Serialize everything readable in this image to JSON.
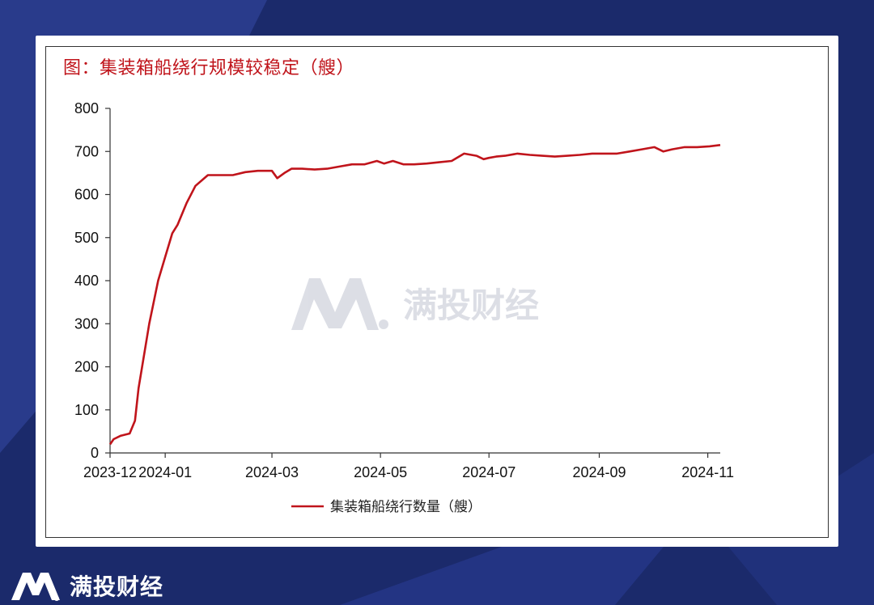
{
  "title": "图：集装箱船绕行规模较稳定（艘）",
  "watermark_text": "满投财经",
  "footer_brand": "满投财经",
  "colors": {
    "background": "#1b2a6b",
    "series": "#c0141b",
    "title": "#c0141b"
  },
  "chart_data": {
    "type": "line",
    "title": "图：集装箱船绕行规模较稳定（艘）",
    "xlabel": "",
    "ylabel": "",
    "ylim": [
      0,
      800
    ],
    "yticks": [
      0,
      100,
      200,
      300,
      400,
      500,
      600,
      700,
      800
    ],
    "x_tick_labels": [
      "2023-12",
      "2024-01",
      "2024-03",
      "2024-05",
      "2024-07",
      "2024-09",
      "2024-11"
    ],
    "x_tick_dates": [
      "2023-12-01",
      "2024-01-01",
      "2024-03-01",
      "2024-05-01",
      "2024-07-01",
      "2024-09-01",
      "2024-11-01"
    ],
    "xlim": [
      "2023-12-01",
      "2024-11-08"
    ],
    "legend_position": "bottom-center",
    "grid": false,
    "series": [
      {
        "name": "集装箱船绕行数量（艘）",
        "x": [
          "2023-12-01",
          "2023-12-03",
          "2023-12-07",
          "2023-12-12",
          "2023-12-15",
          "2023-12-17",
          "2023-12-19",
          "2023-12-21",
          "2023-12-23",
          "2023-12-25",
          "2023-12-28",
          "2024-01-01",
          "2024-01-05",
          "2024-01-08",
          "2024-01-13",
          "2024-01-18",
          "2024-01-25",
          "2024-02-01",
          "2024-02-08",
          "2024-02-15",
          "2024-02-22",
          "2024-03-01",
          "2024-03-04",
          "2024-03-08",
          "2024-03-12",
          "2024-03-18",
          "2024-03-25",
          "2024-04-01",
          "2024-04-08",
          "2024-04-15",
          "2024-04-22",
          "2024-04-29",
          "2024-05-03",
          "2024-05-08",
          "2024-05-14",
          "2024-05-20",
          "2024-05-27",
          "2024-06-03",
          "2024-06-10",
          "2024-06-17",
          "2024-06-24",
          "2024-06-28",
          "2024-07-01",
          "2024-07-05",
          "2024-07-10",
          "2024-07-17",
          "2024-07-24",
          "2024-07-31",
          "2024-08-07",
          "2024-08-14",
          "2024-08-21",
          "2024-08-28",
          "2024-09-04",
          "2024-09-11",
          "2024-09-18",
          "2024-09-25",
          "2024-10-02",
          "2024-10-07",
          "2024-10-12",
          "2024-10-19",
          "2024-10-26",
          "2024-11-02",
          "2024-11-08"
        ],
        "values": [
          20,
          32,
          40,
          45,
          75,
          150,
          200,
          250,
          300,
          340,
          400,
          455,
          510,
          530,
          580,
          620,
          645,
          645,
          645,
          652,
          655,
          655,
          638,
          650,
          660,
          660,
          658,
          660,
          665,
          670,
          670,
          678,
          672,
          678,
          670,
          670,
          672,
          675,
          678,
          695,
          690,
          682,
          685,
          688,
          690,
          695,
          692,
          690,
          688,
          690,
          692,
          695,
          695,
          695,
          700,
          705,
          710,
          700,
          705,
          710,
          710,
          712,
          715
        ]
      }
    ]
  }
}
